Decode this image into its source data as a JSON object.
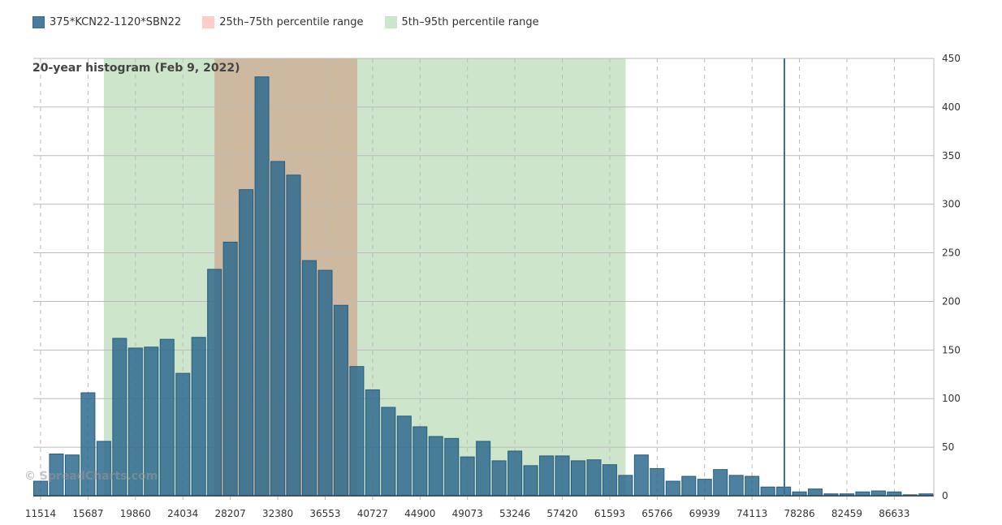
{
  "legend": [
    {
      "label": "375*KCN22-1120*SBN22",
      "color": "#4a7a9c"
    },
    {
      "label": "25th–75th percentile range",
      "color": "#ffcccc"
    },
    {
      "label": "5th–95th percentile range",
      "color": "#cde6cb"
    }
  ],
  "watermark": "© SpreadCharts.com",
  "chart_data": {
    "type": "bar",
    "title": "20-year histogram (Feb 9, 2022)",
    "series_name": "375*KCN22-1120*SBN22",
    "bin_start": 11514,
    "bin_width": 1391.1,
    "values": [
      15,
      43,
      42,
      106,
      56,
      162,
      152,
      153,
      161,
      126,
      163,
      233,
      261,
      315,
      431,
      344,
      330,
      242,
      232,
      196,
      133,
      109,
      91,
      82,
      71,
      61,
      59,
      40,
      56,
      36,
      46,
      31,
      41,
      41,
      36,
      37,
      32,
      21,
      42,
      28,
      15,
      20,
      17,
      27,
      21,
      20,
      9,
      9,
      4,
      7,
      2,
      2,
      4,
      5,
      4,
      1,
      2
    ],
    "x_tick_labels": [
      "11514",
      "15687",
      "19860",
      "24034",
      "28207",
      "32380",
      "36553",
      "40727",
      "44900",
      "49073",
      "53246",
      "57420",
      "61593",
      "65766",
      "69939",
      "74113",
      "78286",
      "82459",
      "86633"
    ],
    "y_ticks": [
      "0",
      "50",
      "100",
      "150",
      "200",
      "250",
      "300",
      "350",
      "400",
      "450"
    ],
    "ylim": [
      0,
      450
    ],
    "bands": [
      {
        "name": "5th–95th percentile range",
        "from": 17078,
        "to": 62990,
        "color": "#cde6cb"
      },
      {
        "name": "25th–75th percentile range",
        "from": 26816,
        "to": 39381,
        "color": "#cdb9a0"
      }
    ],
    "current_value": 76960,
    "current_line_color": "#3a6f99",
    "bar_color": "#2f6a8e",
    "grid": true,
    "legend_position": "top-left"
  }
}
